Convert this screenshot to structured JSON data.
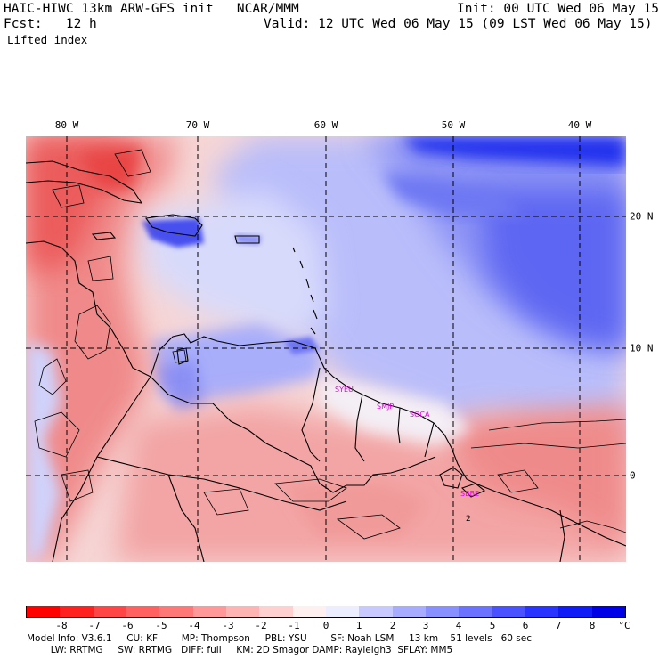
{
  "header": {
    "title": "HAIC-HIWC 13km ARW-GFS init   NCAR/MMM",
    "init": "Init: 00 UTC Wed 06 May 15",
    "fcst": "Fcst:   12 h",
    "valid": "Valid: 12 UTC Wed 06 May 15 (09 LST Wed 06 May 15)",
    "field": "Lifted index"
  },
  "map": {
    "lon_labels": [
      "80 W",
      "70 W",
      "60 W",
      "50 W",
      "40 W"
    ],
    "lat_labels": [
      "20 N",
      "10 N",
      "0"
    ],
    "stations": [
      "SYEU",
      "SMJP",
      "SOCA",
      "SBBE"
    ],
    "contour_label": "2"
  },
  "colorbar": {
    "labels": [
      "-8",
      "-7",
      "-6",
      "-5",
      "-4",
      "-3",
      "-2",
      "-1",
      "0",
      "1",
      "2",
      "3",
      "4",
      "5",
      "6",
      "7",
      "8"
    ],
    "unit": "°C",
    "colors": [
      "#ff0000",
      "#ff2020",
      "#ff4545",
      "#ff6060",
      "#ff7878",
      "#ff9898",
      "#ffb4b4",
      "#ffd0d0",
      "#fff0f0",
      "#ecedff",
      "#c8caff",
      "#a8acff",
      "#8890ff",
      "#6a72ff",
      "#4a52ff",
      "#2a34ff",
      "#101cf5",
      "#0000e6"
    ]
  },
  "footer": {
    "line1": "Model Info: V3.6.1     CU: KF        MP: Thompson     PBL: YSU        SF: Noah LSM     13 km    51 levels   60 sec",
    "line2": "        LW: RRTMG     SW: RRTMG   DIFF: full     KM: 2D Smagor DAMP: Rayleigh3  SFLAY: MM5"
  }
}
